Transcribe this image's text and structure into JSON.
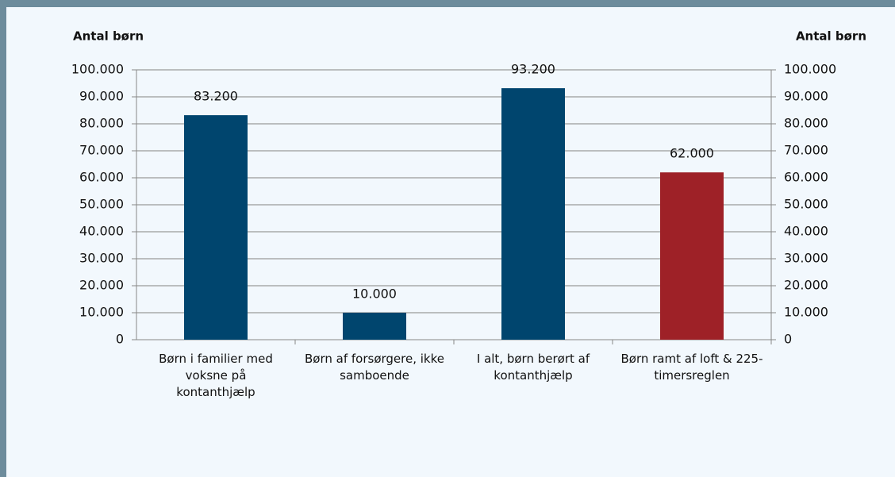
{
  "chart_data": {
    "type": "bar",
    "y_label": "Antal børn",
    "y2_label": "Antal børn",
    "categories": [
      "Børn i familier med voksne på kontanthjælp",
      "Børn af forsørgere, ikke samboende",
      "I alt, børn berørt af kontanthjælp",
      "Børn ramt af loft & 225-timersreglen"
    ],
    "values": [
      83200,
      10000,
      93200,
      62000
    ],
    "value_labels": [
      "83.200",
      "10.000",
      "93.200",
      "62.000"
    ],
    "colors": [
      "#00456e",
      "#00456e",
      "#00456e",
      "#9e2127"
    ],
    "ylim": [
      0,
      100000
    ],
    "yticks": [
      0,
      {
        "value": 10000,
        "label": "10.000"
      },
      {
        "value": 20000,
        "label": "20.000"
      },
      {
        "value": 30000,
        "label": "30.000"
      },
      {
        "value": 40000,
        "label": "40.000"
      },
      {
        "value": 50000,
        "label": "50.000"
      },
      {
        "value": 60000,
        "label": "60.000"
      },
      {
        "value": 70000,
        "label": "70.000"
      },
      {
        "value": 80000,
        "label": "80.000"
      },
      {
        "value": 90000,
        "label": "90.000"
      },
      {
        "value": 100000,
        "label": "100.000"
      }
    ],
    "y2lim": [
      0,
      100000
    ],
    "y2ticks": [
      0,
      {
        "value": 10000,
        "label": "10.000"
      },
      {
        "value": 20000,
        "label": "20.000"
      },
      {
        "value": 30000,
        "label": "30.000"
      },
      {
        "value": 40000,
        "label": "40.000"
      },
      {
        "value": 50000,
        "label": "50.000"
      },
      {
        "value": 60000,
        "label": "60.000"
      },
      {
        "value": 70000,
        "label": "70.000"
      },
      {
        "value": 80000,
        "label": "80.000"
      },
      {
        "value": 90000,
        "label": "90.000"
      },
      {
        "value": 100000,
        "label": "100.000"
      }
    ],
    "grid": true
  }
}
